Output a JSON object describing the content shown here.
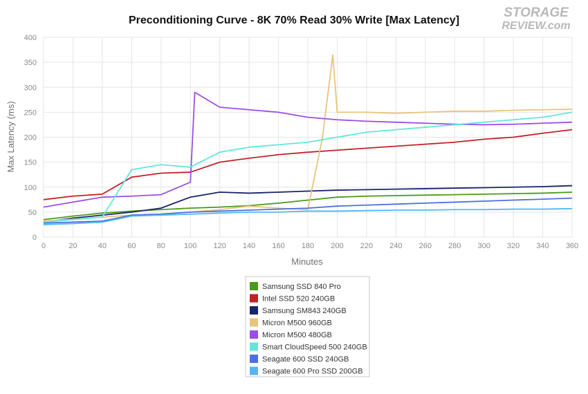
{
  "chart_data": {
    "type": "line",
    "title": "Preconditioning Curve - 8K 70% Read 30% Write [Max Latency]",
    "xlabel": "Minutes",
    "ylabel": "Max Latency (ms)",
    "xlim": [
      0,
      360
    ],
    "ylim": [
      0,
      400
    ],
    "x_ticks": [
      0,
      20,
      40,
      60,
      80,
      100,
      120,
      140,
      160,
      180,
      200,
      220,
      240,
      260,
      280,
      300,
      320,
      340,
      360
    ],
    "y_ticks": [
      0,
      50,
      100,
      150,
      200,
      250,
      300,
      350,
      400
    ],
    "grid": true,
    "legend_position": "bottom-center",
    "series": [
      {
        "name": "Samsung SSD 840 Pro",
        "color": "#4a9a1a",
        "x": [
          0,
          20,
          40,
          60,
          80,
          100,
          120,
          140,
          160,
          180,
          200,
          220,
          240,
          260,
          280,
          300,
          320,
          340,
          360
        ],
        "values": [
          35,
          42,
          48,
          52,
          55,
          58,
          60,
          63,
          68,
          74,
          80,
          82,
          83,
          84,
          85,
          86,
          87,
          88,
          90
        ]
      },
      {
        "name": "Intel SSD 520 240GB",
        "color": "#c42126",
        "x": [
          0,
          20,
          40,
          60,
          80,
          100,
          120,
          140,
          160,
          180,
          200,
          220,
          240,
          260,
          280,
          300,
          320,
          340,
          360
        ],
        "values": [
          75,
          82,
          86,
          120,
          128,
          130,
          150,
          158,
          165,
          170,
          174,
          178,
          182,
          186,
          190,
          196,
          200,
          208,
          215
        ]
      },
      {
        "name": "Samsung SM843 240GB",
        "color": "#17236b",
        "x": [
          0,
          20,
          40,
          60,
          80,
          100,
          120,
          140,
          160,
          180,
          200,
          220,
          240,
          260,
          280,
          300,
          320,
          340,
          360
        ],
        "values": [
          30,
          38,
          44,
          50,
          58,
          80,
          90,
          88,
          90,
          92,
          94,
          95,
          96,
          97,
          98,
          99,
          100,
          101,
          103
        ]
      },
      {
        "name": "Micron M500 960GB",
        "color": "#e9c37d",
        "x": [
          0,
          20,
          40,
          60,
          80,
          100,
          120,
          140,
          160,
          180,
          190,
          197,
          200,
          220,
          240,
          260,
          280,
          300,
          320,
          340,
          360
        ],
        "values": [
          32,
          36,
          40,
          44,
          46,
          50,
          55,
          62,
          58,
          55,
          200,
          365,
          250,
          250,
          248,
          250,
          252,
          252,
          254,
          255,
          256
        ]
      },
      {
        "name": "Micron M500 480GB",
        "color": "#9b4de8",
        "x": [
          0,
          20,
          40,
          60,
          80,
          100,
          103,
          120,
          140,
          160,
          180,
          200,
          220,
          240,
          260,
          280,
          300,
          320,
          340,
          360
        ],
        "values": [
          60,
          70,
          80,
          82,
          85,
          110,
          290,
          260,
          255,
          250,
          240,
          235,
          232,
          230,
          228,
          226,
          225,
          226,
          228,
          230
        ]
      },
      {
        "name": "Smart CloudSpeed 500 240GB",
        "color": "#5ee8d9",
        "x": [
          0,
          20,
          40,
          60,
          80,
          100,
          120,
          140,
          160,
          180,
          200,
          220,
          240,
          260,
          280,
          300,
          320,
          340,
          360
        ],
        "values": [
          30,
          35,
          40,
          135,
          145,
          140,
          170,
          180,
          185,
          190,
          200,
          210,
          215,
          220,
          225,
          230,
          235,
          240,
          250
        ]
      },
      {
        "name": "Seagate 600 SSD 240GB",
        "color": "#4a6fe2",
        "x": [
          0,
          20,
          40,
          60,
          80,
          100,
          120,
          140,
          160,
          180,
          200,
          220,
          240,
          260,
          280,
          300,
          320,
          340,
          360
        ],
        "values": [
          28,
          30,
          32,
          44,
          46,
          50,
          52,
          54,
          56,
          58,
          62,
          64,
          66,
          68,
          70,
          72,
          74,
          76,
          78
        ]
      },
      {
        "name": "Seagate 600 Pro SSD 200GB",
        "color": "#52b7f5",
        "x": [
          0,
          20,
          40,
          60,
          80,
          100,
          120,
          140,
          160,
          180,
          200,
          220,
          240,
          260,
          280,
          300,
          320,
          340,
          360
        ],
        "values": [
          25,
          27,
          30,
          42,
          44,
          46,
          48,
          50,
          50,
          52,
          52,
          53,
          54,
          54,
          55,
          55,
          56,
          56,
          57
        ]
      }
    ]
  },
  "logo": {
    "line1": "STORAGE",
    "line2": "REVIEW.com"
  }
}
